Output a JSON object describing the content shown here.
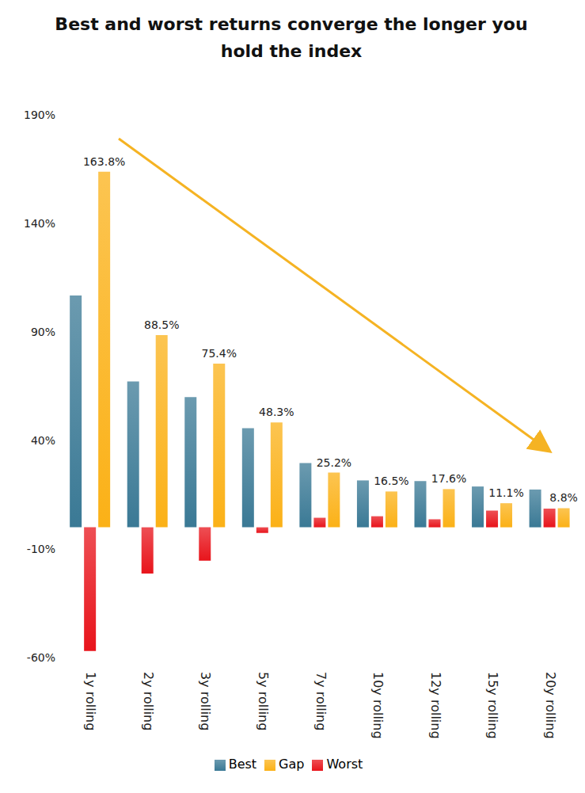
{
  "chart_data": {
    "type": "bar",
    "title": "Best and worst returns converge the longer you hold the index",
    "categories": [
      "1y rolling",
      "2y rolling",
      "3y rolling",
      "5y rolling",
      "7y rolling",
      "10y rolling",
      "12y rolling",
      "15y rolling",
      "20y rolling"
    ],
    "series": [
      {
        "name": "Best",
        "color": "#3a7995",
        "values": [
          106.8,
          67.2,
          60,
          45.7,
          29.6,
          21.6,
          21.3,
          18.8,
          17.4
        ]
      },
      {
        "name": "Worst",
        "color": "#e8141b",
        "values": [
          -57,
          -21.3,
          -15.4,
          -2.6,
          4.4,
          5.1,
          3.7,
          7.7,
          8.6
        ]
      },
      {
        "name": "Gap",
        "color": "#fbb117",
        "values": [
          163.8,
          88.5,
          75.4,
          48.3,
          25.2,
          16.5,
          17.6,
          11.1,
          8.8
        ],
        "value_labels": [
          "163.8%",
          "88.5%",
          "75.4%",
          "48.3%",
          "25.2%",
          "16.5%",
          "17.6%",
          "11.1%",
          "8.8%"
        ]
      }
    ],
    "ylim": [
      -60,
      190
    ],
    "yticks": [
      {
        "value": -60,
        "label": "-60%"
      },
      {
        "value": -10,
        "label": "-10%"
      },
      {
        "value": 40,
        "label": "40%"
      },
      {
        "value": 90,
        "label": "90%"
      },
      {
        "value": 140,
        "label": "140%"
      },
      {
        "value": 190,
        "label": "190%"
      }
    ],
    "grid": false,
    "legend": "bottom"
  }
}
